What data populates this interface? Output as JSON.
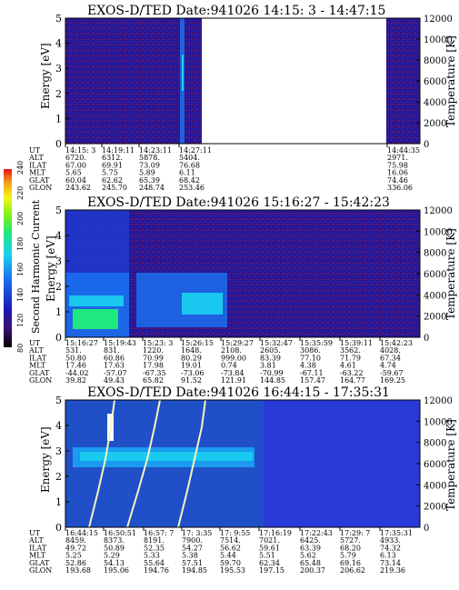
{
  "chart_data": [
    {
      "type": "heatmap",
      "title": "EXOS-D/TED   Date:941026  14:15: 3 - 14:47:15",
      "ylabel": "Energy [eV]",
      "y2label": "Temperature [K]",
      "ylim": [
        0,
        5
      ],
      "yticks": [
        "0",
        "1",
        "2",
        "3",
        "4",
        "5"
      ],
      "y2lim": [
        0,
        12000
      ],
      "y2ticks": [
        "0",
        "2000",
        "4000",
        "6000",
        "8000",
        "10000",
        "12000"
      ],
      "table": {
        "row_labels": [
          "UT",
          "ALT",
          "ILAT",
          "MLT",
          "GLAT",
          "GLON"
        ],
        "columns": [
          [
            "14:15: 3",
            "6720.",
            "67.00",
            "5.65",
            "60.04",
            "243.62"
          ],
          [
            "14:19:11",
            "6312.",
            "69.91",
            "5.75",
            "62.62",
            "245.70"
          ],
          [
            "14:23:11",
            "5878.",
            "73.09",
            "5.89",
            "65.39",
            "248.74"
          ],
          [
            "14:27:11",
            "5404.",
            "76.68",
            "6.11",
            "68.42",
            "253.46"
          ],
          [
            "14:44:35",
            "2971.",
            "75.98",
            "16.06",
            "74.46",
            "336.06"
          ]
        ]
      }
    },
    {
      "type": "heatmap",
      "title": "EXOS-D/TED   Date:941026  15:16:27 - 15:42:23",
      "ylabel": "Energy [eV]",
      "y2label": "Temperature [K]",
      "ylim": [
        0,
        5
      ],
      "yticks": [
        "0",
        "1",
        "2",
        "3",
        "4",
        "5"
      ],
      "y2lim": [
        0,
        12000
      ],
      "y2ticks": [
        "0",
        "2000",
        "4000",
        "6000",
        "8000",
        "10000",
        "12000"
      ],
      "colorbar": {
        "label": "Second Harmonic Current",
        "ticks": [
          "80",
          "120",
          "140",
          "160",
          "180",
          "200",
          "220",
          "240"
        ]
      },
      "table": {
        "row_labels": [
          "UT",
          "ALT",
          "ILAT",
          "MLT",
          "GLAT",
          "GLON"
        ],
        "columns": [
          [
            "15:16:27",
            "531.",
            "50.80",
            "17.46",
            "-44.02",
            "39.82"
          ],
          [
            "15:19:43",
            "831.",
            "60.86",
            "17.63",
            "-57.07",
            "49.43"
          ],
          [
            "15:23: 3",
            "1220.",
            "70.99",
            "17.98",
            "-67.35",
            "65.82"
          ],
          [
            "15:26:15",
            "1648.",
            "80.29",
            "19.01",
            "-73.06",
            "91.52"
          ],
          [
            "15:29:27",
            "2108.",
            "999.00",
            "0.74",
            "-73.84",
            "121.91"
          ],
          [
            "15:32:47",
            "2605.",
            "83.39",
            "3.81",
            "-70.99",
            "144.85"
          ],
          [
            "15:35:59",
            "3086.",
            "77.10",
            "4.38",
            "-67.11",
            "157.47"
          ],
          [
            "15:39:11",
            "3562.",
            "71.79",
            "4.61",
            "-63.22",
            "164.77"
          ],
          [
            "15:42:23",
            "4028.",
            "67.34",
            "4.74",
            "-59.67",
            "169.25"
          ]
        ]
      }
    },
    {
      "type": "heatmap",
      "title": "EXOS-D/TED   Date:941026  16:44:15 - 17:35:31",
      "ylabel": "Energy [eV]",
      "y2label": "Temperature [K]",
      "ylim": [
        0,
        5
      ],
      "yticks": [
        "0",
        "1",
        "2",
        "3",
        "4",
        "5"
      ],
      "y2lim": [
        0,
        12000
      ],
      "y2ticks": [
        "0",
        "2000",
        "4000",
        "6000",
        "8000",
        "10000",
        "12000"
      ],
      "table": {
        "row_labels": [
          "UT",
          "ALT",
          "ILAT",
          "MLT",
          "GLAT",
          "GLON"
        ],
        "columns": [
          [
            "16:44:15",
            "8459.",
            "49.72",
            "5.25",
            "52.86",
            "193.68"
          ],
          [
            "16:50:51",
            "8373.",
            "50.89",
            "5.29",
            "54.13",
            "195.06"
          ],
          [
            "16:57: 7",
            "8191.",
            "52.35",
            "5.33",
            "55.64",
            "194.76"
          ],
          [
            "17: 3:35",
            "7900.",
            "54.27",
            "5.38",
            "57.51",
            "194.85"
          ],
          [
            "17: 9:55",
            "7514.",
            "56.62",
            "5.44",
            "59.70",
            "195.53"
          ],
          [
            "17:16:19",
            "7021.",
            "59.61",
            "5.51",
            "62.34",
            "197.15"
          ],
          [
            "17:22:43",
            "6425.",
            "63.39",
            "5.62",
            "65.48",
            "200.37"
          ],
          [
            "17:29: 7",
            "5727.",
            "68.20",
            "5.79",
            "69.16",
            "206.62"
          ],
          [
            "17:35:31",
            "4933.",
            "74.32",
            "6.13",
            "73.14",
            "219.36"
          ]
        ]
      }
    }
  ]
}
